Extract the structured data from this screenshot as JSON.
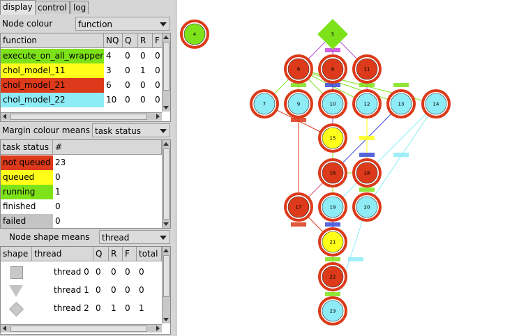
{
  "tabs": [
    {
      "label": "display",
      "active": true
    },
    {
      "label": "control",
      "active": false
    },
    {
      "label": "log",
      "active": false
    }
  ],
  "node_colour": {
    "label": "Node colour mean",
    "selected": "function",
    "columns": [
      "function",
      "NQ",
      "Q",
      "R",
      "F"
    ],
    "rows": [
      {
        "name": "execute_on_all_wrapper",
        "color": "#7ee21a",
        "values": [
          "4",
          "0",
          "0",
          "0"
        ]
      },
      {
        "name": "chol_model_11",
        "color": "#ffff1a",
        "values": [
          "3",
          "0",
          "1",
          "0"
        ]
      },
      {
        "name": "chol_model_21",
        "color": "#dc3a1a",
        "values": [
          "6",
          "0",
          "0",
          "0"
        ]
      },
      {
        "name": "chol_model_22",
        "color": "#8eecf6",
        "values": [
          "10",
          "0",
          "0",
          "0"
        ]
      }
    ]
  },
  "margin_colour": {
    "label": "Margin colour means",
    "selected": "task status",
    "columns": [
      "task status",
      "#"
    ],
    "rows": [
      {
        "name": "not queued",
        "color": "#dc3a1a",
        "value": "23"
      },
      {
        "name": "queued",
        "color": "#ffff1a",
        "value": "0"
      },
      {
        "name": "running",
        "color": "#7ee21a",
        "value": "1"
      },
      {
        "name": "finished",
        "color": "#ffffff",
        "value": "0"
      },
      {
        "name": "failed",
        "color": "#c4c4c4",
        "value": "0"
      }
    ]
  },
  "node_shape": {
    "label": "Node shape means",
    "selected": "thread",
    "columns": [
      "shape",
      "thread",
      "Q",
      "R",
      "F",
      "total"
    ],
    "rows": [
      {
        "shape": "square-icon",
        "name": "thread 0",
        "values": [
          "0",
          "0",
          "0",
          "0"
        ]
      },
      {
        "shape": "triangle-icon",
        "name": "thread 1",
        "values": [
          "0",
          "0",
          "0",
          "0"
        ]
      },
      {
        "shape": "diamond-icon",
        "name": "thread 2",
        "values": [
          "0",
          "1",
          "0",
          "1"
        ]
      }
    ]
  },
  "graph": {
    "colors": {
      "red": "#dc3a1a",
      "yellow": "#ffff1a",
      "green": "#7ee21a",
      "cyan": "#8eecf6",
      "margin_red": "#dc3a1a",
      "margin_green": "#7ee21a"
    },
    "nodes": [
      {
        "id": "4",
        "fill": "green",
        "margin": "red"
      },
      {
        "id": "5",
        "fill": "green",
        "margin": "green"
      },
      {
        "id": "6",
        "fill": "red",
        "margin": "red"
      },
      {
        "id": "8",
        "fill": "red",
        "margin": "red"
      },
      {
        "id": "11",
        "fill": "red",
        "margin": "red"
      },
      {
        "id": "7",
        "fill": "cyan",
        "margin": "red"
      },
      {
        "id": "9",
        "fill": "cyan",
        "margin": "red"
      },
      {
        "id": "10",
        "fill": "cyan",
        "margin": "red"
      },
      {
        "id": "12",
        "fill": "cyan",
        "margin": "red"
      },
      {
        "id": "13",
        "fill": "cyan",
        "margin": "red"
      },
      {
        "id": "14",
        "fill": "cyan",
        "margin": "red"
      },
      {
        "id": "15",
        "fill": "yellow",
        "margin": "red"
      },
      {
        "id": "16",
        "fill": "red",
        "margin": "red"
      },
      {
        "id": "18",
        "fill": "red",
        "margin": "red"
      },
      {
        "id": "17",
        "fill": "red",
        "margin": "red"
      },
      {
        "id": "19",
        "fill": "cyan",
        "margin": "red"
      },
      {
        "id": "20",
        "fill": "cyan",
        "margin": "red"
      },
      {
        "id": "21",
        "fill": "yellow",
        "margin": "red"
      },
      {
        "id": "22",
        "fill": "red",
        "margin": "red"
      },
      {
        "id": "23",
        "fill": "cyan",
        "margin": "red"
      }
    ]
  }
}
